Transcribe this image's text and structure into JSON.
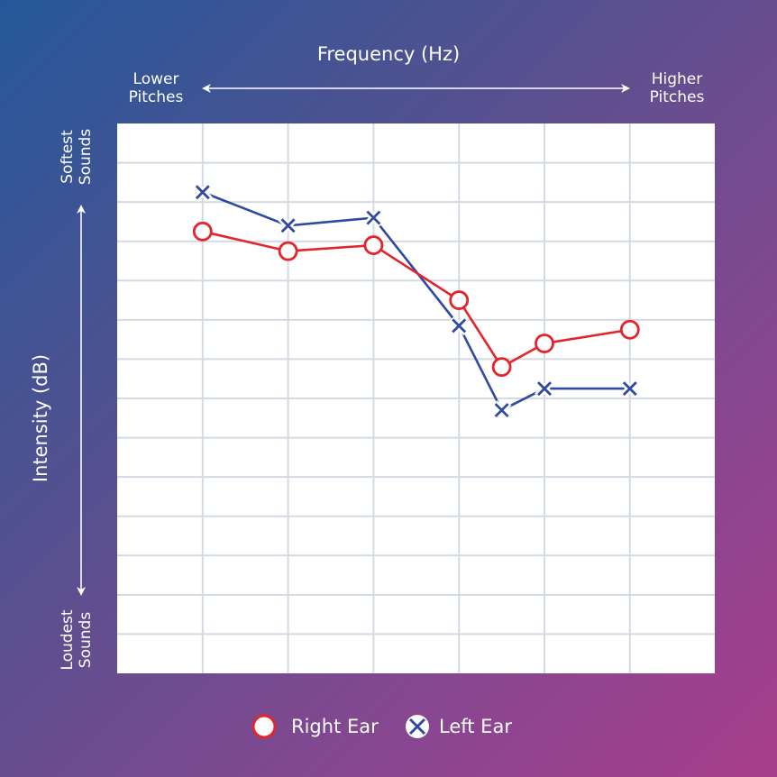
{
  "chart_data": {
    "type": "line",
    "title": "",
    "xlabel": "Frequency (Hz)",
    "ylabel": "Intensity (dB)",
    "x_axis_ends": {
      "left": [
        "Lower",
        "Pitches"
      ],
      "right": [
        "Higher",
        "Pitches"
      ]
    },
    "y_axis_ends": {
      "top": [
        "Softest",
        "Sounds"
      ],
      "bottom": [
        "Loudest",
        "Sounds"
      ]
    },
    "y_inverted": true,
    "grid": true,
    "xlim": [
      0,
      7
    ],
    "ylim": [
      0,
      14
    ],
    "legend_position": "bottom-center",
    "series": [
      {
        "name": "Right Ear",
        "marker": "circle",
        "color": "#e5232b",
        "x": [
          1,
          2,
          3,
          4,
          4.5,
          5,
          6
        ],
        "y": [
          2.75,
          3.25,
          3.1,
          4.5,
          6.2,
          5.6,
          5.25
        ]
      },
      {
        "name": "Left Ear",
        "marker": "x",
        "color": "#2f4aa0",
        "x": [
          1,
          2,
          3,
          4,
          4.5,
          5,
          6
        ],
        "y": [
          1.75,
          2.6,
          2.4,
          5.15,
          7.3,
          6.75,
          6.75
        ]
      }
    ]
  }
}
